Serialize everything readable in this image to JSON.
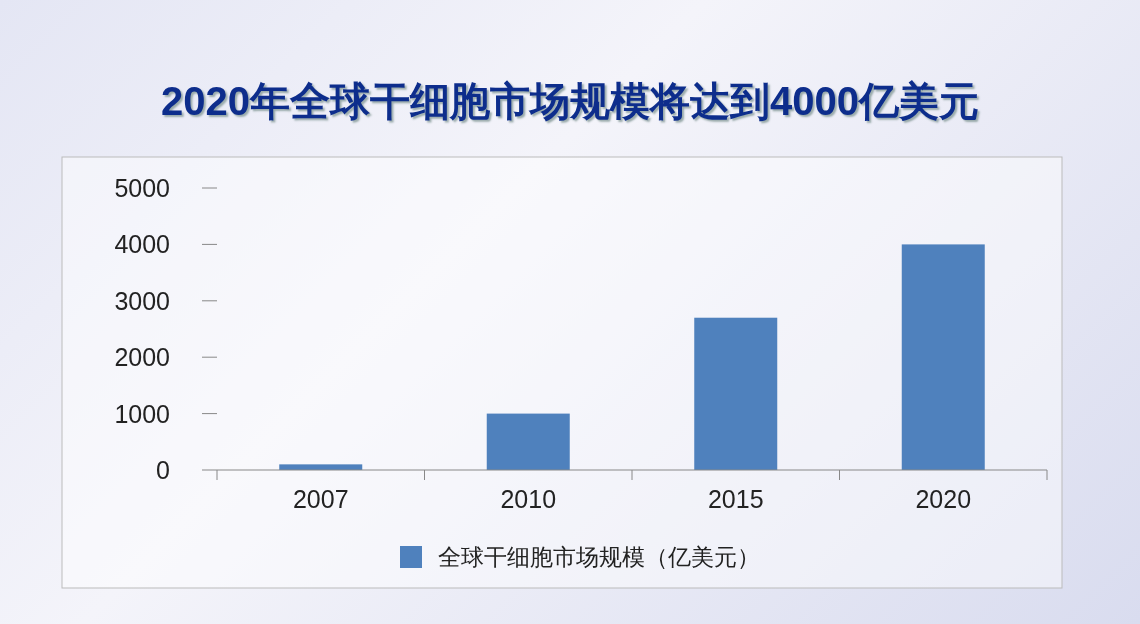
{
  "chart_data": {
    "type": "bar",
    "title": "2020年全球干细胞市场规模将达到4000亿美元",
    "categories": [
      "2007",
      "2010",
      "2015",
      "2020"
    ],
    "series": [
      {
        "name": "全球干细胞市场规模（亿美元）",
        "color": "#4f81bd",
        "values": [
          100,
          1000,
          2700,
          4000
        ]
      }
    ],
    "ylim": [
      0,
      5000
    ],
    "yticks": [
      0,
      1000,
      2000,
      3000,
      4000,
      5000
    ],
    "grid": false,
    "legend": "bottom"
  }
}
